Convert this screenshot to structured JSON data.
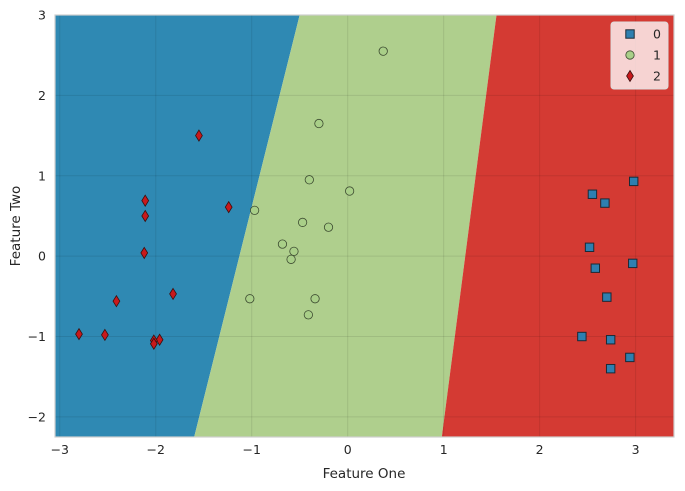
{
  "chart_data": {
    "type": "scatter",
    "subtype": "decision-boundary",
    "xlabel": "Feature One",
    "ylabel": "Feature Two",
    "xlim": [
      -3.05,
      3.4
    ],
    "ylim": [
      -2.25,
      3.0
    ],
    "xticks": [
      -3,
      -2,
      -1,
      0,
      1,
      2,
      3
    ],
    "yticks": [
      -2,
      -1,
      0,
      1,
      2,
      3
    ],
    "tick_labels_x": [
      "−3",
      "−2",
      "−1",
      "0",
      "1",
      "2",
      "3"
    ],
    "tick_labels_y": [
      "−2",
      "−1",
      "0",
      "1",
      "2",
      "3"
    ],
    "grid": true,
    "legend_position": "top-right",
    "regions": [
      {
        "class": "0",
        "color": "#2f89b3",
        "boundary_to_next": {
          "x_at_ymin": -1.6,
          "x_at_ymax": -0.5
        }
      },
      {
        "class": "1",
        "color": "#afcf8d",
        "boundary_to_next": {
          "x_at_ymin": 0.98,
          "x_at_ymax": 1.55
        }
      },
      {
        "class": "2",
        "color": "#d43a33"
      }
    ],
    "series": [
      {
        "name": "0",
        "marker": "square",
        "color": "#2e7fb0",
        "points": [
          [
            2.98,
            0.93
          ],
          [
            2.55,
            0.77
          ],
          [
            2.68,
            0.66
          ],
          [
            2.52,
            0.11
          ],
          [
            2.58,
            -0.15
          ],
          [
            2.97,
            -0.09
          ],
          [
            2.7,
            -0.51
          ],
          [
            2.44,
            -1.0
          ],
          [
            2.74,
            -1.04
          ],
          [
            2.94,
            -1.26
          ],
          [
            2.74,
            -1.4
          ]
        ]
      },
      {
        "name": "1",
        "marker": "circle",
        "color": "#a9cf88",
        "points": [
          [
            0.37,
            2.55
          ],
          [
            -0.3,
            1.65
          ],
          [
            -0.4,
            0.95
          ],
          [
            0.02,
            0.81
          ],
          [
            -0.97,
            0.57
          ],
          [
            -0.47,
            0.42
          ],
          [
            -0.2,
            0.36
          ],
          [
            -0.68,
            0.15
          ],
          [
            -0.56,
            0.06
          ],
          [
            -0.59,
            -0.04
          ],
          [
            -1.02,
            -0.53
          ],
          [
            -0.34,
            -0.53
          ],
          [
            -0.41,
            -0.73
          ]
        ]
      },
      {
        "name": "2",
        "marker": "diamond",
        "color": "#c8191c",
        "points": [
          [
            -1.55,
            1.5
          ],
          [
            -1.24,
            0.61
          ],
          [
            -2.11,
            0.69
          ],
          [
            -2.11,
            0.5
          ],
          [
            -2.12,
            0.04
          ],
          [
            -2.41,
            -0.56
          ],
          [
            -1.82,
            -0.47
          ],
          [
            -2.8,
            -0.97
          ],
          [
            -2.53,
            -0.98
          ],
          [
            -1.96,
            -1.04
          ],
          [
            -2.02,
            -1.05
          ],
          [
            -2.02,
            -1.09
          ]
        ]
      }
    ]
  }
}
